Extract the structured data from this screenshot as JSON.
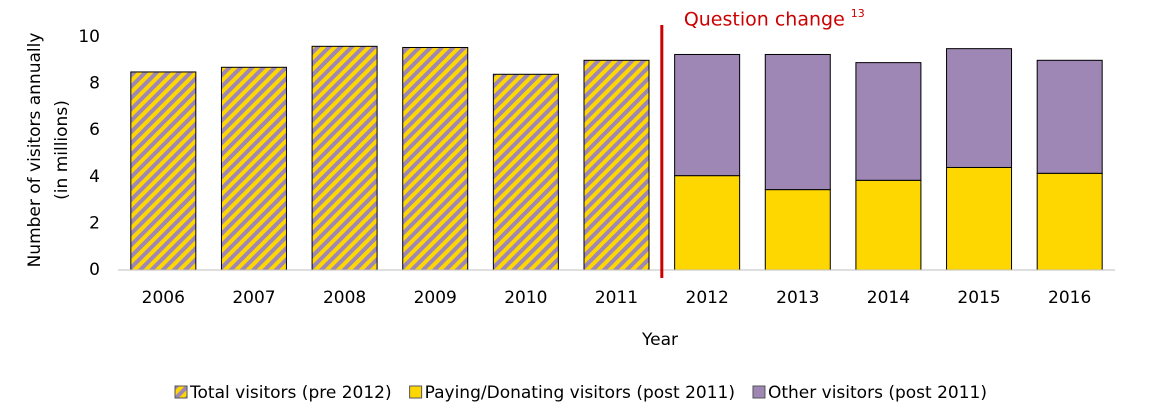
{
  "chart_data": {
    "type": "stacked_bar",
    "ylabel": [
      "Number of visitors annually",
      "(in millions)"
    ],
    "xlabel": "Year",
    "categories": [
      "2006",
      "2007",
      "2008",
      "2009",
      "2010",
      "2011",
      "2012",
      "2013",
      "2014",
      "2015",
      "2016"
    ],
    "series": [
      {
        "name": "Total visitors (pre 2012)",
        "color": "#ffd700",
        "hatch_color": "#9e86b5",
        "values": [
          8.5,
          8.7,
          9.6,
          9.55,
          8.4,
          9.0,
          null,
          null,
          null,
          null,
          null
        ]
      },
      {
        "name": "Paying/Donating visitors (post 2011)",
        "color": "#ffd700",
        "values": [
          null,
          null,
          null,
          null,
          null,
          null,
          4.05,
          3.45,
          3.85,
          4.4,
          4.15
        ]
      },
      {
        "name": "Other visitors (post 2011)",
        "color": "#9e86b5",
        "values": [
          null,
          null,
          null,
          null,
          null,
          null,
          5.2,
          5.8,
          5.05,
          5.1,
          4.85
        ]
      }
    ],
    "ylim": [
      0,
      10
    ],
    "yticks": [
      0,
      2,
      4,
      6,
      8,
      10
    ],
    "grid": false,
    "legend": "bottom",
    "annotation": {
      "text": "Question change",
      "superscript": "13",
      "color": "#cc0000"
    }
  }
}
